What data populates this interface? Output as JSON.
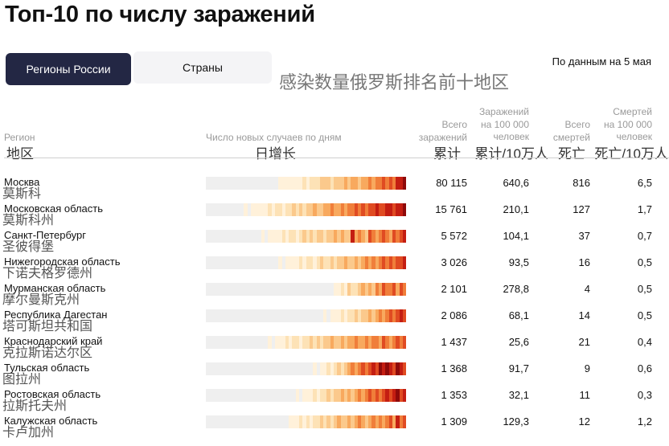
{
  "title": "Топ-10 по числу заражений",
  "tabs": [
    {
      "label": "Регионы России",
      "active": true
    },
    {
      "label": "Страны",
      "active": false
    }
  ],
  "date_note": "По данным на 5 мая",
  "cn_title": "感染数量俄罗斯排名前十地区",
  "colors": {
    "accent_dark": "#232744",
    "scale": [
      "#efefef",
      "#fff1da",
      "#fde2b6",
      "#fbc98c",
      "#f8a95e",
      "#f07e3a",
      "#e04b22",
      "#c41e12",
      "#8e0a0a"
    ]
  },
  "headers": {
    "region": {
      "label": "Регион",
      "cn": "地区"
    },
    "daily": {
      "label": "Число новых случаев по дням",
      "cn": "日增长"
    },
    "total": {
      "line1": "Всего",
      "line2": "заражений",
      "cn": "累计"
    },
    "per100k": {
      "line1": "Заражений",
      "line2": "на 100 000",
      "line3": "человек",
      "cn": "累计/10万人"
    },
    "deaths": {
      "line1": "Всего",
      "line2": "смертей",
      "cn": "死亡"
    },
    "deaths_per100k": {
      "line1": "Смертей",
      "line2": "на 100 000",
      "line3": "человек",
      "cn": "死亡/10万人"
    }
  },
  "chart_data": {
    "type": "table",
    "columns": [
      "Регион",
      "Число новых случаев по дням",
      "Всего заражений",
      "Заражений на 100 000 человек",
      "Всего смертей",
      "Смертей на 100 000 человек"
    ],
    "rows": [
      {
        "name": "Москва",
        "cn": "莫斯科",
        "total": "80 115",
        "per100k": "640,6",
        "deaths": "816",
        "dper100k": "6,5",
        "daily": [
          0,
          0,
          0,
          0,
          0,
          0,
          0,
          0,
          0,
          0,
          0,
          0,
          0,
          0,
          0,
          0,
          0,
          0,
          0,
          0,
          0,
          1,
          1,
          1,
          1,
          1,
          1,
          1,
          2,
          1,
          2,
          2,
          2,
          3,
          3,
          3,
          2,
          3,
          3,
          3,
          4,
          3,
          4,
          4,
          3,
          4,
          4,
          5,
          4,
          5,
          5,
          6,
          5,
          6,
          5,
          7,
          7,
          8
        ]
      },
      {
        "name": "Московская область",
        "cn": "莫斯科州",
        "total": "15 761",
        "per100k": "210,1",
        "deaths": "127",
        "dper100k": "1,7",
        "daily": [
          0,
          0,
          0,
          0,
          0,
          0,
          0,
          0,
          0,
          0,
          0,
          1,
          0,
          1,
          1,
          1,
          1,
          1,
          2,
          1,
          2,
          2,
          1,
          2,
          2,
          3,
          2,
          3,
          2,
          3,
          3,
          4,
          3,
          3,
          4,
          4,
          5,
          4,
          4,
          5,
          4,
          5,
          5,
          6,
          5,
          6,
          5,
          6,
          6,
          7,
          6,
          6,
          7,
          7,
          6,
          7,
          7,
          8
        ]
      },
      {
        "name": "Санкт-Петербург",
        "cn": "圣彼得堡",
        "total": "5 572",
        "per100k": "104,1",
        "deaths": "37",
        "dper100k": "0,7",
        "daily": [
          0,
          0,
          0,
          0,
          0,
          0,
          0,
          0,
          0,
          0,
          0,
          0,
          0,
          0,
          0,
          0,
          1,
          0,
          1,
          1,
          1,
          1,
          2,
          1,
          2,
          2,
          1,
          2,
          3,
          2,
          3,
          2,
          3,
          3,
          2,
          3,
          3,
          4,
          3,
          4,
          3,
          3,
          7,
          4,
          5,
          4,
          3,
          6,
          5,
          4,
          5,
          6,
          5,
          4,
          6,
          5,
          6,
          7
        ]
      },
      {
        "name": "Нижегородская область",
        "cn": "下诺夫格罗德州",
        "total": "3 026",
        "per100k": "93,5",
        "deaths": "16",
        "dper100k": "0,5",
        "daily": [
          0,
          0,
          0,
          0,
          0,
          0,
          0,
          0,
          0,
          0,
          0,
          0,
          0,
          0,
          0,
          0,
          0,
          0,
          0,
          0,
          0,
          1,
          0,
          1,
          1,
          1,
          1,
          2,
          1,
          2,
          2,
          1,
          2,
          3,
          2,
          2,
          3,
          2,
          3,
          3,
          4,
          3,
          3,
          4,
          3,
          4,
          5,
          4,
          5,
          4,
          5,
          6,
          5,
          6,
          5,
          6,
          6,
          7
        ]
      },
      {
        "name": "Мурманская область",
        "cn": "摩尔曼斯克州",
        "total": "2 101",
        "per100k": "278,8",
        "deaths": "4",
        "dper100k": "0,5",
        "daily": [
          0,
          0,
          0,
          0,
          0,
          0,
          0,
          0,
          0,
          0,
          0,
          0,
          0,
          0,
          0,
          0,
          0,
          0,
          0,
          0,
          0,
          0,
          0,
          0,
          0,
          0,
          0,
          0,
          0,
          0,
          0,
          0,
          0,
          0,
          0,
          0,
          0,
          1,
          1,
          2,
          1,
          3,
          2,
          2,
          3,
          4,
          3,
          4,
          3,
          5,
          4,
          6,
          5,
          5,
          6,
          4,
          6,
          5
        ]
      },
      {
        "name": "Республика Дагестан",
        "cn": "塔可斯坦共和国",
        "total": "2 086",
        "per100k": "68,1",
        "deaths": "14",
        "dper100k": "0,5",
        "daily": [
          0,
          0,
          0,
          0,
          0,
          0,
          0,
          0,
          0,
          0,
          0,
          0,
          0,
          0,
          0,
          0,
          0,
          0,
          0,
          0,
          0,
          0,
          0,
          0,
          0,
          0,
          0,
          0,
          0,
          0,
          0,
          0,
          0,
          0,
          1,
          0,
          1,
          1,
          1,
          2,
          1,
          2,
          2,
          3,
          2,
          3,
          3,
          4,
          3,
          4,
          5,
          4,
          5,
          6,
          5,
          6,
          7,
          6
        ]
      },
      {
        "name": "Краснодарский край",
        "cn": "克拉斯诺达尔区",
        "total": "1 437",
        "per100k": "25,6",
        "deaths": "21",
        "dper100k": "0,4",
        "daily": [
          0,
          0,
          0,
          0,
          0,
          0,
          0,
          0,
          0,
          0,
          0,
          0,
          0,
          0,
          0,
          0,
          0,
          0,
          1,
          0,
          1,
          1,
          1,
          2,
          1,
          2,
          2,
          1,
          2,
          2,
          3,
          2,
          3,
          2,
          3,
          3,
          4,
          3,
          3,
          4,
          3,
          4,
          4,
          5,
          4,
          4,
          5,
          4,
          5,
          5,
          4,
          6,
          5,
          4,
          5,
          6,
          5,
          6
        ]
      },
      {
        "name": "Тульская область",
        "cn": "图拉州",
        "total": "1 368",
        "per100k": "91,7",
        "deaths": "9",
        "dper100k": "0,6",
        "daily": [
          0,
          0,
          0,
          0,
          0,
          0,
          0,
          0,
          0,
          0,
          0,
          0,
          0,
          0,
          0,
          0,
          0,
          0,
          0,
          0,
          0,
          0,
          0,
          0,
          0,
          0,
          0,
          0,
          0,
          0,
          0,
          1,
          0,
          1,
          1,
          2,
          1,
          2,
          3,
          2,
          3,
          4,
          5,
          4,
          5,
          6,
          5,
          6,
          7,
          6,
          8,
          7,
          8,
          7,
          6,
          8,
          7,
          6
        ]
      },
      {
        "name": "Ростовская область",
        "cn": "拉斯托夫州",
        "total": "1 353",
        "per100k": "32,1",
        "deaths": "11",
        "dper100k": "0,3",
        "daily": [
          0,
          0,
          0,
          0,
          0,
          0,
          0,
          0,
          0,
          0,
          0,
          0,
          0,
          0,
          0,
          0,
          0,
          0,
          0,
          0,
          0,
          0,
          0,
          0,
          0,
          0,
          1,
          0,
          1,
          1,
          1,
          2,
          1,
          2,
          2,
          3,
          2,
          3,
          3,
          4,
          3,
          4,
          3,
          4,
          5,
          4,
          5,
          6,
          5,
          6,
          5,
          6,
          7,
          6,
          7,
          8,
          6,
          7
        ]
      },
      {
        "name": "Калужская область",
        "cn": "卡卢加州",
        "total": "1 309",
        "per100k": "129,3",
        "deaths": "12",
        "dper100k": "1,2",
        "daily": [
          0,
          0,
          0,
          0,
          0,
          0,
          0,
          0,
          0,
          0,
          0,
          0,
          0,
          0,
          0,
          0,
          0,
          0,
          0,
          0,
          0,
          0,
          0,
          0,
          1,
          1,
          1,
          2,
          1,
          2,
          1,
          2,
          2,
          3,
          2,
          3,
          2,
          3,
          4,
          3,
          3,
          4,
          3,
          4,
          5,
          4,
          3,
          4,
          5,
          4,
          5,
          4,
          5,
          6,
          4,
          7,
          5,
          6
        ]
      }
    ]
  }
}
